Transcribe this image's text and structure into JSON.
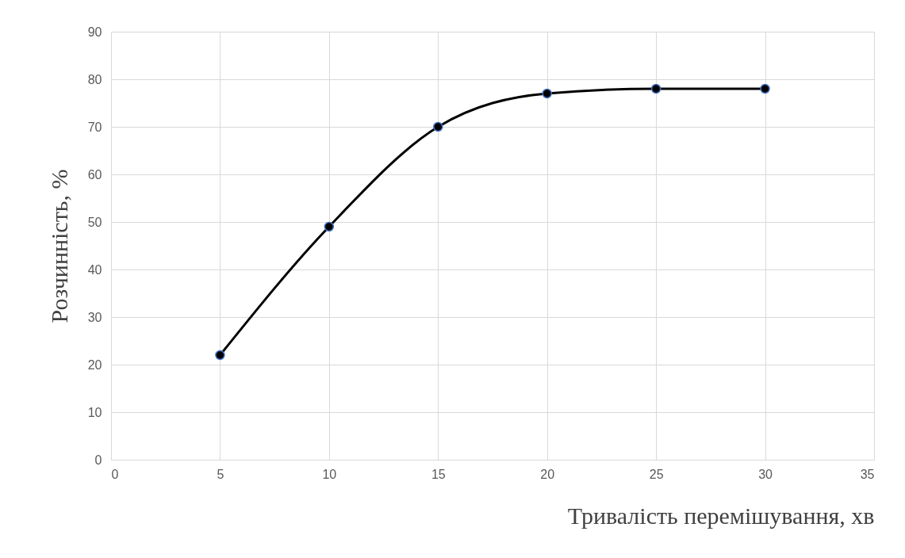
{
  "chart_data": {
    "type": "line",
    "xlabel": "Тривалість перемішування, хв",
    "ylabel": "Розчинність, %",
    "x": [
      5,
      10,
      15,
      20,
      25,
      30
    ],
    "series": [
      {
        "color": "#000000",
        "values": [
          22,
          49,
          70,
          77,
          78,
          78
        ]
      }
    ],
    "xlim": [
      0,
      35
    ],
    "xticks": [
      0,
      5,
      10,
      15,
      20,
      25,
      30,
      35
    ],
    "ylim": [
      0,
      90
    ],
    "yticks": [
      0,
      10,
      20,
      30,
      40,
      50,
      60,
      70,
      80,
      90
    ],
    "grid": true,
    "marker": "circle"
  }
}
